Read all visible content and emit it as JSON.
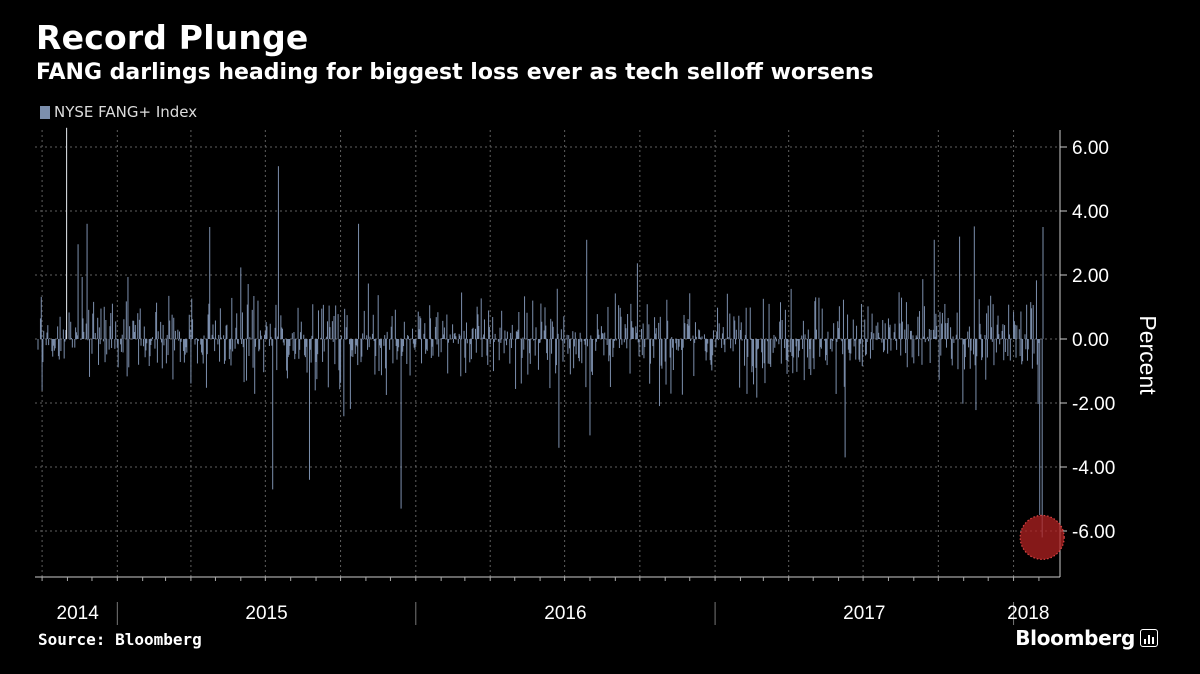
{
  "title": "Record Plunge",
  "subtitle": "FANG darlings heading for biggest loss ever as tech selloff worsens",
  "source": "Source: Bloomberg",
  "brand": "Bloomberg",
  "colors": {
    "background": "#000000",
    "series": "#7c8fad",
    "highlight": "#b22222",
    "grid": "#666666"
  },
  "chart_data": {
    "type": "bar",
    "title": "Record Plunge",
    "subtitle": "FANG darlings heading for biggest loss ever as tech selloff worsens",
    "series_name": "NYSE FANG+ Index",
    "ylabel": "Percent",
    "xlabel": "",
    "ylim": [
      -7.5,
      6.6
    ],
    "yticks": [
      6,
      4,
      2,
      0,
      -2,
      -4,
      -6
    ],
    "ytick_labels": [
      "6.00",
      "4.00",
      "2.00",
      "0.00",
      "-2.00",
      "-4.00",
      "-6.00"
    ],
    "x_year_labels": [
      "2014",
      "2015",
      "2016",
      "2017",
      "2018"
    ],
    "x_range": [
      "2014-09-26",
      "2018-02-06"
    ],
    "legend_position": "top-left",
    "grid": true,
    "annotation": {
      "type": "circle-highlight",
      "date": "2018-02-05",
      "value": -6.2
    },
    "key_points": [
      {
        "date": "2014-10-31",
        "value": 6.6
      },
      {
        "date": "2014-11-25",
        "value": 3.6
      },
      {
        "date": "2015-04-24",
        "value": 3.5
      },
      {
        "date": "2015-07-17",
        "value": 5.4
      },
      {
        "date": "2015-07-10",
        "value": -4.7
      },
      {
        "date": "2015-08-24",
        "value": -4.4
      },
      {
        "date": "2015-10-23",
        "value": 3.6
      },
      {
        "date": "2015-12-14",
        "value": -5.3
      },
      {
        "date": "2016-06-24",
        "value": -3.4
      },
      {
        "date": "2016-07-28",
        "value": 3.1
      },
      {
        "date": "2017-06-09",
        "value": -3.7
      },
      {
        "date": "2017-09-26",
        "value": 3.1
      },
      {
        "date": "2017-10-27",
        "value": 3.2
      },
      {
        "date": "2018-02-02",
        "value": -5.5
      },
      {
        "date": "2018-02-05",
        "value": -6.2
      },
      {
        "date": "2018-02-06",
        "value": 3.5
      }
    ]
  }
}
